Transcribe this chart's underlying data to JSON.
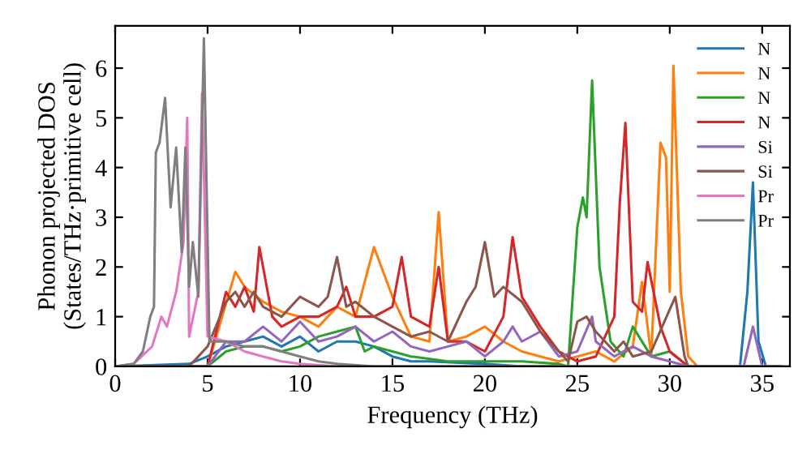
{
  "chart_data": {
    "type": "line",
    "xlabel": "Frequency (THz)",
    "ylabel": "Phonon projected DOS\n(States/THz·primitive cell)",
    "xlim": [
      0,
      36.5
    ],
    "ylim": [
      0,
      6.85
    ],
    "xticks": [
      0,
      5,
      10,
      15,
      20,
      25,
      30,
      35
    ],
    "yticks": [
      0,
      1,
      2,
      3,
      4,
      5,
      6
    ],
    "legend": "top right",
    "grid": false,
    "marker": "none",
    "line_style": "solid",
    "series": [
      {
        "name": "N",
        "color": "#1f77b4",
        "x": [
          0,
          4,
          5,
          6,
          7,
          8,
          9,
          10,
          11,
          12,
          13,
          14,
          15,
          16,
          17,
          20,
          22,
          33.8,
          34.2,
          34.5,
          34.8,
          35.2,
          36
        ],
        "values": [
          0,
          0.05,
          0.2,
          0.4,
          0.5,
          0.6,
          0.4,
          0.6,
          0.3,
          0.5,
          0.5,
          0.4,
          0.2,
          0.1,
          0.1,
          0.05,
          0,
          0,
          1.5,
          3.7,
          0.5,
          0,
          0
        ]
      },
      {
        "name": "N",
        "color": "#ff7f0e",
        "x": [
          0,
          5,
          6.5,
          7,
          8,
          9,
          10,
          11,
          12,
          13,
          14,
          15,
          16,
          17,
          17.5,
          18,
          19,
          20,
          21,
          22,
          23,
          24,
          25,
          26,
          27,
          28,
          28.5,
          29,
          29.5,
          29.8,
          30,
          30.2,
          30.6,
          31,
          31.5,
          36
        ],
        "values": [
          0,
          0,
          1.9,
          1.6,
          1.3,
          1.1,
          1.0,
          0.8,
          1.2,
          1.0,
          2.4,
          1.4,
          0.6,
          0.5,
          3.1,
          0.5,
          0.6,
          0.8,
          0.5,
          0.3,
          0.2,
          0.1,
          0.2,
          0.3,
          0.1,
          0.4,
          1.7,
          0.2,
          4.5,
          4.2,
          1.5,
          6.05,
          1.5,
          0.2,
          0,
          0
        ]
      },
      {
        "name": "N",
        "color": "#2ca02c",
        "x": [
          0,
          5,
          6,
          7,
          8,
          9,
          10,
          11,
          12,
          13,
          13.5,
          14,
          15,
          16,
          18,
          20,
          22,
          24,
          24.5,
          25,
          25.3,
          25.5,
          25.8,
          26.2,
          26.8,
          27.5,
          28,
          29,
          30,
          31,
          36
        ],
        "values": [
          0,
          0,
          0.3,
          0.4,
          0.4,
          0.3,
          0.4,
          0.6,
          0.7,
          0.8,
          0.3,
          0.4,
          0.3,
          0.2,
          0.1,
          0.1,
          0.1,
          0.05,
          0,
          2.8,
          3.4,
          3.0,
          5.75,
          2.0,
          0.5,
          0.2,
          0.8,
          0.2,
          0.3,
          0,
          0
        ]
      },
      {
        "name": "N",
        "color": "#d62728",
        "x": [
          0,
          5,
          6,
          6.5,
          7,
          7.5,
          7.8,
          8.5,
          9,
          10,
          11,
          12,
          12.5,
          13,
          14,
          15,
          15.5,
          16,
          17,
          17.5,
          18,
          19,
          20,
          21,
          21.5,
          22,
          23,
          24,
          25,
          26,
          27,
          27.3,
          27.6,
          28,
          28.5,
          28.8,
          29.5,
          30,
          31,
          36
        ],
        "values": [
          0,
          0,
          1.5,
          1.2,
          1.6,
          1.1,
          2.4,
          1.0,
          0.8,
          1.0,
          1.0,
          1.2,
          1.6,
          1.0,
          1.0,
          1.2,
          2.2,
          1.0,
          0.8,
          2.0,
          0.5,
          0.5,
          0.3,
          1.0,
          2.6,
          1.4,
          0.8,
          0.3,
          0.1,
          0.2,
          1.0,
          3.3,
          4.9,
          1.3,
          1.1,
          2.1,
          0.8,
          0.3,
          0,
          0
        ]
      },
      {
        "name": "Si",
        "color": "#9467bd",
        "x": [
          0,
          5,
          6,
          7,
          8,
          9,
          10,
          11,
          12,
          13,
          14,
          15,
          16,
          17,
          18,
          19,
          20,
          21,
          21.5,
          22,
          23,
          24,
          25,
          25.8,
          26,
          27,
          28,
          29,
          30,
          31,
          34,
          34.5,
          35,
          36
        ],
        "values": [
          0,
          0,
          0.5,
          0.5,
          0.8,
          0.5,
          0.9,
          0.5,
          0.6,
          0.8,
          0.5,
          0.7,
          0.4,
          0.3,
          0.4,
          0.5,
          0.2,
          0.5,
          0.8,
          0.5,
          0.7,
          0.2,
          0.3,
          1.0,
          0.5,
          0.2,
          0.4,
          0.2,
          0.1,
          0,
          0,
          0.8,
          0,
          0
        ]
      },
      {
        "name": "Si",
        "color": "#8c564b",
        "x": [
          0,
          4,
          4.5,
          5,
          6,
          6.5,
          7,
          7.5,
          8,
          9,
          10,
          11,
          11.5,
          12,
          12.5,
          13,
          14,
          15,
          16,
          17,
          18,
          19,
          19.5,
          20,
          20.5,
          21,
          22,
          23,
          24,
          24.5,
          25,
          25.5,
          26,
          27,
          27.5,
          28,
          29,
          30.3,
          30.8,
          31,
          36
        ],
        "values": [
          0,
          0,
          0.2,
          0.4,
          1.3,
          1.5,
          1.2,
          1.5,
          1.2,
          1.0,
          1.4,
          1.2,
          1.4,
          2.2,
          1.2,
          1.3,
          1.0,
          0.8,
          0.6,
          0.7,
          0.5,
          1.3,
          1.6,
          2.5,
          1.4,
          1.6,
          1.3,
          0.7,
          0.3,
          0.1,
          0.9,
          1.0,
          0.7,
          0.3,
          0.5,
          0.2,
          0.3,
          1.4,
          0.2,
          0,
          0
        ]
      },
      {
        "name": "Pr",
        "color": "#e377c2",
        "x": [
          0,
          1,
          2,
          2.5,
          2.8,
          3.3,
          3.7,
          3.9,
          4.0,
          4.5,
          4.7,
          5,
          6,
          7,
          8,
          9,
          10,
          12,
          36
        ],
        "values": [
          0,
          0.05,
          0.4,
          1.0,
          0.8,
          1.5,
          2.5,
          5.0,
          0.6,
          1.5,
          5.5,
          0.6,
          0.5,
          0.3,
          0.2,
          0.1,
          0.05,
          0,
          0
        ]
      },
      {
        "name": "Pr",
        "color": "#7f7f7f",
        "x": [
          0,
          1,
          1.5,
          1.9,
          2.1,
          2.2,
          2.4,
          2.7,
          3.0,
          3.3,
          3.6,
          3.8,
          4.0,
          4.2,
          4.5,
          4.8,
          5.1,
          6,
          7,
          8,
          9,
          10,
          11,
          12,
          14,
          36
        ],
        "values": [
          0,
          0.05,
          0.3,
          1.0,
          1.2,
          4.3,
          4.5,
          5.4,
          3.2,
          4.4,
          2.3,
          4.4,
          1.6,
          2.5,
          1.4,
          6.6,
          0.5,
          0.5,
          0.4,
          0.4,
          0.3,
          0.2,
          0.1,
          0.05,
          0,
          0
        ]
      }
    ]
  }
}
